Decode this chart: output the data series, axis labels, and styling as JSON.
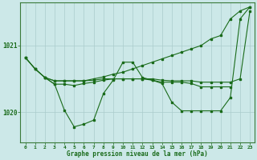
{
  "xlabel": "Graphe pression niveau de la mer (hPa)",
  "background_color": "#cce8e8",
  "grid_color": "#b0d0d0",
  "line_color": "#1a6b1a",
  "x_ticks": [
    0,
    1,
    2,
    3,
    4,
    5,
    6,
    7,
    8,
    9,
    10,
    11,
    12,
    13,
    14,
    15,
    16,
    17,
    18,
    19,
    20,
    21,
    22,
    23
  ],
  "ylim": [
    1019.55,
    1021.65
  ],
  "yticks": [
    1020,
    1021
  ],
  "series1_x": [
    0,
    1,
    2,
    3,
    4,
    5,
    6,
    7,
    8,
    9,
    10,
    11,
    12,
    13,
    14,
    15,
    16,
    17,
    18,
    19,
    20,
    21,
    22,
    23
  ],
  "series1_y": [
    1020.82,
    1020.65,
    1020.52,
    1020.47,
    1020.47,
    1020.47,
    1020.47,
    1020.5,
    1020.53,
    1020.57,
    1020.6,
    1020.65,
    1020.7,
    1020.75,
    1020.8,
    1020.85,
    1020.9,
    1020.95,
    1021.0,
    1021.1,
    1021.15,
    1021.4,
    1021.52,
    1021.58
  ],
  "series2_x": [
    0,
    1,
    2,
    3,
    4,
    5,
    6,
    7,
    8,
    9,
    10,
    11,
    12,
    13,
    14,
    15,
    16,
    17,
    18,
    19,
    20,
    21,
    22,
    23
  ],
  "series2_y": [
    1020.82,
    1020.65,
    1020.52,
    1020.47,
    1020.47,
    1020.47,
    1020.47,
    1020.48,
    1020.5,
    1020.5,
    1020.5,
    1020.5,
    1020.5,
    1020.5,
    1020.48,
    1020.47,
    1020.47,
    1020.47,
    1020.45,
    1020.45,
    1020.45,
    1020.45,
    1020.5,
    1021.52
  ],
  "series3_x": [
    0,
    1,
    2,
    3,
    4,
    5,
    6,
    7,
    8,
    9,
    10,
    11,
    12,
    13,
    14,
    15,
    16,
    17,
    18,
    19,
    20,
    21,
    22,
    23
  ],
  "series3_y": [
    1020.82,
    1020.65,
    1020.52,
    1020.42,
    1020.03,
    1019.78,
    1019.82,
    1019.88,
    1020.28,
    1020.48,
    1020.75,
    1020.75,
    1020.52,
    1020.48,
    1020.43,
    1020.15,
    1020.02,
    1020.02,
    1020.02,
    1020.02,
    1020.02,
    1020.22,
    1021.4,
    1021.58
  ],
  "series4_x": [
    2,
    3,
    4,
    5,
    6,
    7,
    8,
    9,
    10,
    11,
    12,
    13,
    14,
    15,
    16,
    17,
    18,
    19,
    20,
    21
  ],
  "series4_y": [
    1020.52,
    1020.42,
    1020.42,
    1020.4,
    1020.43,
    1020.45,
    1020.48,
    1020.5,
    1020.5,
    1020.5,
    1020.5,
    1020.48,
    1020.45,
    1020.45,
    1020.45,
    1020.43,
    1020.38,
    1020.38,
    1020.38,
    1020.38
  ]
}
